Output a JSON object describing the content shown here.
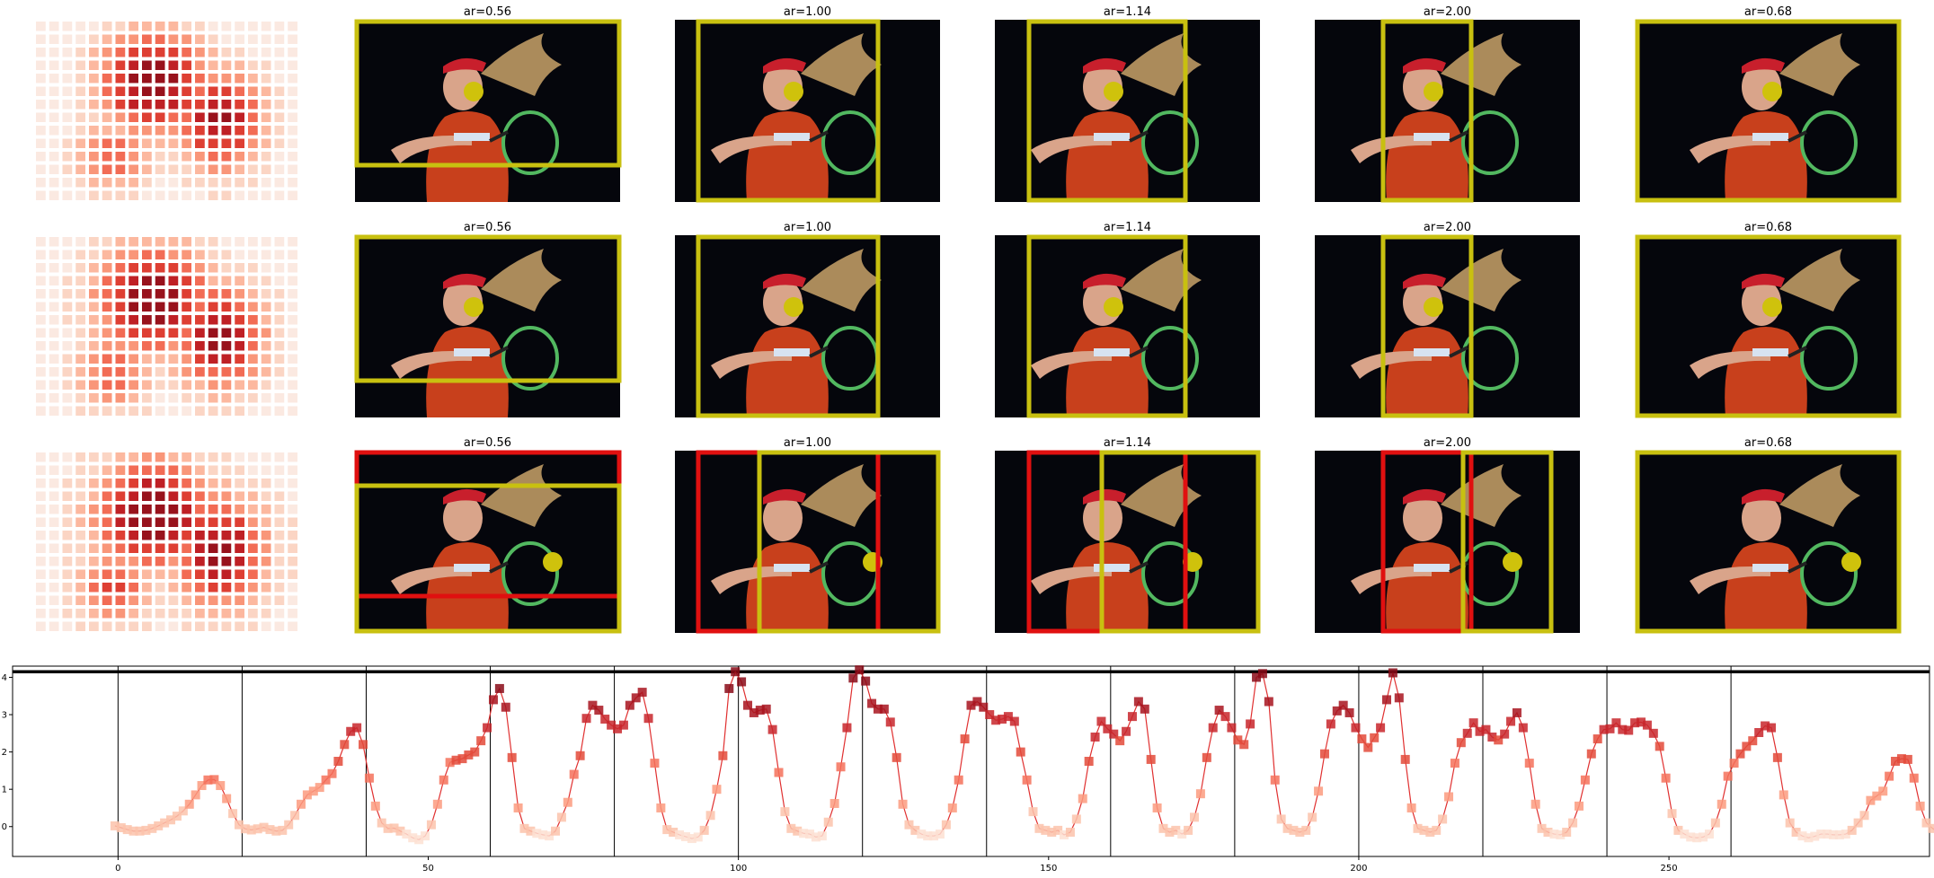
{
  "grid": {
    "titles": [
      "ar=0.56",
      "ar=1.00",
      "ar=1.14",
      "ar=2.00",
      "ar=0.68"
    ],
    "box_color": "#c8c010",
    "highlight_color": "#e01010",
    "dot_color": "#cfc20c",
    "photo_bg": "#05060c",
    "rows": [
      {
        "dot": "head",
        "red_boxes": false
      },
      {
        "dot": "head",
        "red_boxes": false
      },
      {
        "dot": "racket",
        "red_boxes": true
      }
    ]
  },
  "chart_data": {
    "type": "scatter",
    "title": "",
    "xlabel": "",
    "ylabel": "",
    "xlim": [
      -17,
      292
    ],
    "ylim": [
      -0.8,
      4.3
    ],
    "xticks": [
      0,
      50,
      100,
      150,
      200,
      250
    ],
    "yticks": [
      0,
      1,
      2,
      3,
      4
    ],
    "threshold": 4.15,
    "segment_bounds": [
      0,
      20,
      40,
      60,
      80,
      100,
      120,
      140,
      160,
      180,
      200,
      220,
      240,
      260
    ],
    "line_color": "#e03030",
    "x_start": -0.5,
    "x_step": 1,
    "values": [
      0.02,
      -0.03,
      -0.08,
      -0.12,
      -0.12,
      -0.1,
      -0.05,
      0.02,
      0.1,
      0.18,
      0.28,
      0.42,
      0.6,
      0.85,
      1.1,
      1.25,
      1.26,
      1.1,
      0.75,
      0.35,
      0.05,
      -0.06,
      -0.09,
      -0.06,
      -0.02,
      -0.08,
      -0.12,
      -0.1,
      0.05,
      0.3,
      0.6,
      0.85,
      0.95,
      1.05,
      1.25,
      1.42,
      1.75,
      2.2,
      2.55,
      2.65,
      2.2,
      1.3,
      0.55,
      0.1,
      -0.05,
      -0.04,
      -0.12,
      -0.2,
      -0.3,
      -0.35,
      -0.25,
      0.05,
      0.6,
      1.25,
      1.72,
      1.78,
      1.82,
      1.92,
      2.0,
      2.3,
      2.65,
      3.4,
      3.7,
      3.2,
      1.85,
      0.5,
      -0.05,
      -0.12,
      -0.18,
      -0.22,
      -0.25,
      -0.12,
      0.25,
      0.65,
      1.4,
      1.9,
      2.9,
      3.25,
      3.12,
      2.88,
      2.72,
      2.62,
      2.72,
      3.25,
      3.45,
      3.6,
      2.9,
      1.7,
      0.5,
      -0.08,
      -0.15,
      -0.22,
      -0.27,
      -0.32,
      -0.28,
      -0.1,
      0.3,
      1.0,
      1.9,
      3.7,
      4.15,
      3.88,
      3.25,
      3.05,
      3.12,
      3.15,
      2.6,
      1.45,
      0.4,
      -0.05,
      -0.12,
      -0.18,
      -0.2,
      -0.28,
      -0.25,
      0.12,
      0.62,
      1.6,
      2.65,
      3.98,
      4.2,
      3.9,
      3.3,
      3.15,
      3.15,
      2.8,
      1.85,
      0.6,
      0.05,
      -0.1,
      -0.2,
      -0.25,
      -0.25,
      -0.2,
      0.05,
      0.5,
      1.25,
      2.35,
      3.25,
      3.35,
      3.2,
      3.0,
      2.85,
      2.88,
      2.95,
      2.82,
      2.0,
      1.25,
      0.4,
      -0.05,
      -0.1,
      -0.15,
      -0.1,
      -0.22,
      -0.15,
      0.2,
      0.75,
      1.75,
      2.4,
      2.82,
      2.62,
      2.48,
      2.3,
      2.55,
      2.95,
      3.35,
      3.15,
      1.8,
      0.5,
      -0.05,
      -0.15,
      -0.1,
      -0.2,
      -0.1,
      0.25,
      0.88,
      1.85,
      2.65,
      3.12,
      2.95,
      2.65,
      2.32,
      2.2,
      2.75,
      4.0,
      4.1,
      3.35,
      1.25,
      0.2,
      -0.05,
      -0.1,
      -0.15,
      -0.1,
      0.25,
      0.95,
      1.95,
      2.75,
      3.1,
      3.25,
      3.05,
      2.65,
      2.35,
      2.12,
      2.38,
      2.65,
      3.4,
      4.12,
      3.45,
      1.8,
      0.5,
      -0.05,
      -0.1,
      -0.15,
      -0.1,
      0.2,
      0.8,
      1.7,
      2.25,
      2.5,
      2.78,
      2.55,
      2.6,
      2.4,
      2.32,
      2.48,
      2.82,
      3.05,
      2.65,
      1.7,
      0.6,
      -0.05,
      -0.15,
      -0.2,
      -0.22,
      -0.15,
      0.1,
      0.55,
      1.25,
      1.95,
      2.35,
      2.6,
      2.62,
      2.78,
      2.6,
      2.58,
      2.78,
      2.8,
      2.72,
      2.5,
      2.15,
      1.3,
      0.35,
      -0.1,
      -0.2,
      -0.28,
      -0.3,
      -0.28,
      -0.2,
      0.1,
      0.6,
      1.35,
      1.7,
      1.95,
      2.15,
      2.3,
      2.52,
      2.7,
      2.65,
      1.85,
      0.85,
      0.1,
      -0.15,
      -0.25,
      -0.3,
      -0.26,
      -0.2,
      -0.2,
      -0.22,
      -0.22,
      -0.2,
      -0.1,
      0.1,
      0.3,
      0.7,
      0.82,
      0.95,
      1.35,
      1.75,
      1.82,
      1.8,
      1.3,
      0.55,
      0.1,
      -0.05,
      -0.15,
      -0.28,
      -0.3,
      -0.25,
      -0.15,
      -0.05
    ]
  }
}
